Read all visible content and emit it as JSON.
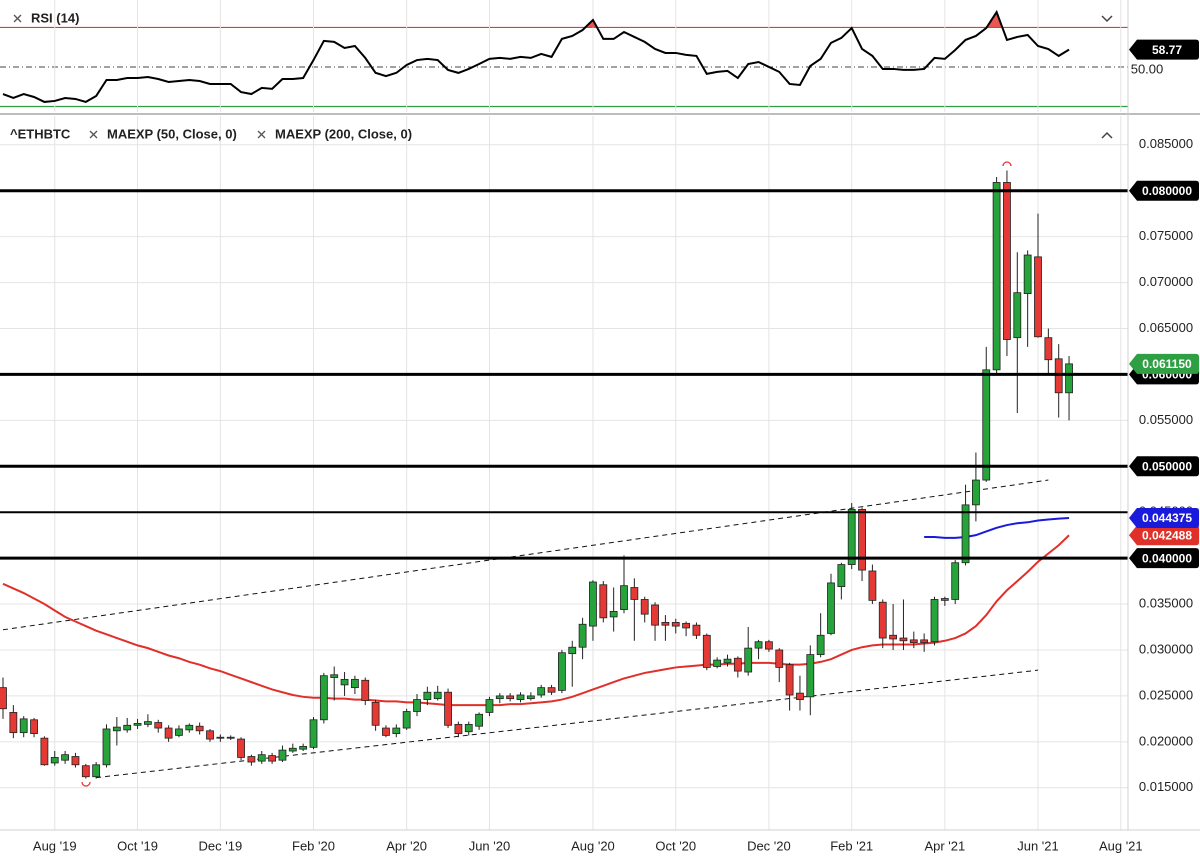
{
  "chart_data": [
    {
      "type": "line",
      "title": "RSI (14)",
      "color": "#000000",
      "ylim": [
        27.2,
        83.9
      ],
      "yticks": [
        {
          "value": 50,
          "label": "50.00"
        }
      ],
      "grid": true,
      "overbought": 70,
      "oversold": 30,
      "overbought_color": "#e53935",
      "oversold_color": "#2ea043",
      "values": [
        36.3,
        34.3,
        36.3,
        34.8,
        32.3,
        32.8,
        34.3,
        33.8,
        32.3,
        35.3,
        43.4,
        43.4,
        44.4,
        44.4,
        44.9,
        43.9,
        42.4,
        42.9,
        43.4,
        42.9,
        41.4,
        41.4,
        41.4,
        37.3,
        36.3,
        39.4,
        38.9,
        43.9,
        43.9,
        44.4,
        53.5,
        63.2,
        62.7,
        59.6,
        60.6,
        54.6,
        47.0,
        45.4,
        47.0,
        51.0,
        53.5,
        54.1,
        53.5,
        48.5,
        47.0,
        49.0,
        51.5,
        54.1,
        54.6,
        54.1,
        55.1,
        54.6,
        56.6,
        55.1,
        64.2,
        65.7,
        68.7,
        73.8,
        64.2,
        64.2,
        67.7,
        65.2,
        62.7,
        59.1,
        57.1,
        57.1,
        56.1,
        55.6,
        46.5,
        47.5,
        48.0,
        44.4,
        51.5,
        52.5,
        50.0,
        47.5,
        41.4,
        40.9,
        50.5,
        54.1,
        62.2,
        64.7,
        69.7,
        59.1,
        55.6,
        49.0,
        49.0,
        48.5,
        48.5,
        49.0,
        54.6,
        54.1,
        58.6,
        63.7,
        65.7,
        69.7,
        77.8,
        63.7,
        65.2,
        66.2,
        60.6,
        59.1,
        55.6,
        58.77,
        null,
        null,
        null,
        null,
        null
      ]
    },
    {
      "type": "candlestick",
      "title": "^ETHBTC",
      "up_color": "#26a33a",
      "down_color": "#e53935",
      "ylim": [
        0.0104,
        0.0877
      ],
      "yticks": [
        {
          "value": 0.085,
          "label": "0.085000"
        },
        {
          "value": 0.08,
          "label": "0.080000"
        },
        {
          "value": 0.075,
          "label": "0.075000"
        },
        {
          "value": 0.07,
          "label": "0.070000"
        },
        {
          "value": 0.065,
          "label": "0.065000"
        },
        {
          "value": 0.06,
          "label": "0.060000"
        },
        {
          "value": 0.055,
          "label": "0.055000"
        },
        {
          "value": 0.05,
          "label": "0.050000"
        },
        {
          "value": 0.045,
          "label": "0.045000"
        },
        {
          "value": 0.04,
          "label": "0.040000"
        },
        {
          "value": 0.035,
          "label": "0.035000"
        },
        {
          "value": 0.03,
          "label": "0.030000"
        },
        {
          "value": 0.025,
          "label": "0.025000"
        },
        {
          "value": 0.02,
          "label": "0.020000"
        },
        {
          "value": 0.015,
          "label": "0.015000"
        }
      ],
      "grid": true,
      "categories": [
        null,
        null,
        null,
        null,
        null,
        "Aug '19",
        null,
        null,
        null,
        null,
        null,
        null,
        null,
        "Oct '19",
        null,
        null,
        null,
        null,
        null,
        null,
        null,
        "Dec '19",
        null,
        null,
        null,
        null,
        null,
        null,
        null,
        null,
        "Feb '20",
        null,
        null,
        null,
        null,
        null,
        null,
        null,
        null,
        "Apr '20",
        null,
        null,
        null,
        null,
        null,
        null,
        null,
        "Jun '20",
        null,
        null,
        null,
        null,
        null,
        null,
        null,
        null,
        null,
        "Aug '20",
        null,
        null,
        null,
        null,
        null,
        null,
        null,
        "Oct '20",
        null,
        null,
        null,
        null,
        null,
        null,
        null,
        null,
        "Dec '20",
        null,
        null,
        null,
        null,
        null,
        null,
        null,
        "Feb '21",
        null,
        null,
        null,
        null,
        null,
        null,
        null,
        null,
        "Apr '21",
        null,
        null,
        null,
        null,
        null,
        null,
        null,
        null,
        "Jun '21",
        null,
        null,
        null,
        null,
        null,
        null,
        null,
        "Aug '21"
      ],
      "open": [
        0.0259,
        0.0232,
        0.021,
        0.0224,
        0.0204,
        0.0177,
        0.018,
        0.0184,
        0.0174,
        0.0162,
        0.0175,
        0.0212,
        0.0213,
        0.0218,
        0.0219,
        0.0221,
        0.0215,
        0.0207,
        0.0213,
        0.0217,
        0.0212,
        0.0205,
        0.0205,
        0.0203,
        0.0184,
        0.0179,
        0.0185,
        0.018,
        0.019,
        0.0192,
        0.0194,
        0.0224,
        0.027,
        0.0262,
        0.0259,
        0.0267,
        0.0243,
        0.0215,
        0.0209,
        0.0215,
        0.0233,
        0.0246,
        0.0247,
        0.0254,
        0.0219,
        0.0211,
        0.0217,
        0.0232,
        0.0247,
        0.025,
        0.0246,
        0.0247,
        0.0251,
        0.0259,
        0.0256,
        0.0296,
        0.0303,
        0.0326,
        0.0371,
        0.0336,
        0.0344,
        0.0368,
        0.0355,
        0.0349,
        0.033,
        0.033,
        0.0329,
        0.0327,
        0.0316,
        0.0282,
        0.0286,
        0.0291,
        0.0276,
        0.0302,
        0.0309,
        0.03,
        0.0284,
        0.0253,
        0.0249,
        0.0295,
        0.0318,
        0.0369,
        0.0393,
        0.0453,
        0.0386,
        0.0352,
        0.0316,
        0.0313,
        0.0311,
        0.0311,
        0.0309,
        0.0356,
        0.0355,
        0.0395,
        0.0458,
        0.0485,
        0.0605,
        0.0809,
        0.064,
        0.0688,
        0.0728,
        0.064,
        0.0617,
        0.058,
        null,
        null,
        null,
        null,
        null
      ],
      "high": [
        0.027,
        0.024,
        0.0228,
        0.0226,
        0.0206,
        0.019,
        0.019,
        0.0188,
        0.0176,
        0.0178,
        0.0219,
        0.0227,
        0.0226,
        0.0225,
        0.023,
        0.0224,
        0.0218,
        0.0218,
        0.022,
        0.0221,
        0.0214,
        0.0208,
        0.0207,
        0.0205,
        0.0186,
        0.019,
        0.0188,
        0.0196,
        0.0198,
        0.0198,
        0.0227,
        0.0275,
        0.0282,
        0.0276,
        0.0272,
        0.027,
        0.0246,
        0.0218,
        0.0219,
        0.0236,
        0.0252,
        0.026,
        0.0261,
        0.0258,
        0.0222,
        0.0222,
        0.0232,
        0.0249,
        0.0253,
        0.0253,
        0.0254,
        0.0254,
        0.0262,
        0.0262,
        0.03,
        0.031,
        0.0335,
        0.0376,
        0.0375,
        0.0368,
        0.0403,
        0.0378,
        0.0358,
        0.0352,
        0.0338,
        0.0334,
        0.0331,
        0.033,
        0.0318,
        0.0292,
        0.0295,
        0.0293,
        0.0325,
        0.0311,
        0.0311,
        0.0302,
        0.0286,
        0.0272,
        0.0305,
        0.034,
        0.0383,
        0.0395,
        0.046,
        0.0455,
        0.0393,
        0.0355,
        0.035,
        0.0355,
        0.032,
        0.0318,
        0.0358,
        0.0358,
        0.0398,
        0.048,
        0.0515,
        0.063,
        0.0815,
        0.0822,
        0.0733,
        0.0735,
        0.0775,
        0.065,
        0.0633,
        0.062,
        null,
        null,
        null,
        null,
        null
      ],
      "low": [
        0.0225,
        0.0204,
        0.0205,
        0.0205,
        0.0174,
        0.0174,
        0.0176,
        0.0172,
        0.016,
        0.016,
        0.0172,
        0.0196,
        0.021,
        0.0214,
        0.0216,
        0.021,
        0.02,
        0.0205,
        0.021,
        0.0208,
        0.02,
        0.02,
        0.0202,
        0.018,
        0.0174,
        0.0176,
        0.0176,
        0.0178,
        0.0188,
        0.019,
        0.0192,
        0.022,
        0.0245,
        0.025,
        0.0252,
        0.024,
        0.0212,
        0.0205,
        0.0205,
        0.0213,
        0.0228,
        0.024,
        0.0245,
        0.0215,
        0.0205,
        0.0207,
        0.0213,
        0.0228,
        0.0242,
        0.0244,
        0.0243,
        0.0245,
        0.0248,
        0.0251,
        0.0253,
        0.026,
        0.029,
        0.031,
        0.033,
        0.032,
        0.034,
        0.031,
        0.033,
        0.031,
        0.031,
        0.0318,
        0.0315,
        0.0312,
        0.0278,
        0.028,
        0.0282,
        0.027,
        0.0272,
        0.029,
        0.0298,
        0.0265,
        0.0234,
        0.0234,
        0.0229,
        0.0292,
        0.0316,
        0.0355,
        0.0388,
        0.0375,
        0.035,
        0.0302,
        0.03,
        0.03,
        0.0302,
        0.0298,
        0.0305,
        0.0348,
        0.035,
        0.0392,
        0.044,
        0.0483,
        0.06,
        0.062,
        0.0558,
        0.063,
        0.064,
        0.06,
        0.0553,
        0.055,
        null,
        null,
        null,
        null,
        null
      ],
      "close": [
        0.0236,
        0.021,
        0.0225,
        0.0209,
        0.0175,
        0.0183,
        0.0186,
        0.0175,
        0.0162,
        0.0175,
        0.0214,
        0.0216,
        0.0218,
        0.022,
        0.0222,
        0.0215,
        0.0204,
        0.0214,
        0.0218,
        0.0212,
        0.0203,
        0.0204,
        0.0204,
        0.0183,
        0.0178,
        0.0186,
        0.0179,
        0.0191,
        0.0193,
        0.0195,
        0.0224,
        0.0272,
        0.0273,
        0.0268,
        0.0268,
        0.0245,
        0.0218,
        0.0207,
        0.0215,
        0.0233,
        0.0246,
        0.0254,
        0.0254,
        0.0218,
        0.0209,
        0.0219,
        0.023,
        0.0246,
        0.025,
        0.0247,
        0.0251,
        0.025,
        0.0259,
        0.0254,
        0.0297,
        0.0303,
        0.0328,
        0.0374,
        0.0335,
        0.0342,
        0.037,
        0.0355,
        0.0339,
        0.0327,
        0.0327,
        0.0326,
        0.0324,
        0.0316,
        0.0281,
        0.0289,
        0.029,
        0.0277,
        0.0302,
        0.0309,
        0.0301,
        0.0281,
        0.0251,
        0.0246,
        0.0295,
        0.0316,
        0.0373,
        0.0393,
        0.0453,
        0.0387,
        0.0354,
        0.0313,
        0.0312,
        0.031,
        0.0308,
        0.0308,
        0.0355,
        0.0354,
        0.0395,
        0.0458,
        0.0485,
        0.0605,
        0.0809,
        0.0638,
        0.0689,
        0.073,
        0.0641,
        0.0616,
        0.058,
        0.06115,
        null,
        null,
        null,
        null,
        null
      ],
      "last_close_label": "0.061150",
      "last_close_color": "#2ea043",
      "series": [
        {
          "name": "MAEXP (50, Close, 0)",
          "color": "#e0302a",
          "values": [
            0.0372,
            0.0367,
            0.0362,
            0.0356,
            0.035,
            0.0343,
            0.0336,
            0.0331,
            0.0326,
            0.0321,
            0.0317,
            0.0313,
            0.0309,
            0.0305,
            0.0302,
            0.0298,
            0.0294,
            0.0291,
            0.0287,
            0.0284,
            0.028,
            0.0277,
            0.0273,
            0.0269,
            0.0265,
            0.0261,
            0.0257,
            0.0254,
            0.0251,
            0.0249,
            0.0248,
            0.0248,
            0.0247,
            0.0247,
            0.0246,
            0.0246,
            0.0245,
            0.0244,
            0.0244,
            0.0243,
            0.0243,
            0.0242,
            0.0241,
            0.024,
            0.024,
            0.024,
            0.024,
            0.024,
            0.024,
            0.0241,
            0.0241,
            0.0242,
            0.0243,
            0.0244,
            0.0246,
            0.0249,
            0.0253,
            0.0257,
            0.0261,
            0.0265,
            0.0269,
            0.0272,
            0.0275,
            0.0277,
            0.0279,
            0.0281,
            0.0282,
            0.0283,
            0.0284,
            0.0284,
            0.0285,
            0.0285,
            0.0286,
            0.0286,
            0.0286,
            0.0285,
            0.0284,
            0.0284,
            0.0285,
            0.0287,
            0.029,
            0.0295,
            0.03,
            0.0303,
            0.0305,
            0.0306,
            0.0306,
            0.0306,
            0.0306,
            0.0307,
            0.0308,
            0.031,
            0.0313,
            0.0318,
            0.0326,
            0.0338,
            0.0353,
            0.0365,
            0.0375,
            0.0385,
            0.0396,
            0.0405,
            0.0414,
            0.042488,
            null,
            null,
            null,
            null,
            null
          ]
        },
        {
          "name": "MAEXP (200, Close, 0)",
          "color": "#1a1adb",
          "values": [
            null,
            null,
            null,
            null,
            null,
            null,
            null,
            null,
            null,
            null,
            null,
            null,
            null,
            null,
            null,
            null,
            null,
            null,
            null,
            null,
            null,
            null,
            null,
            null,
            null,
            null,
            null,
            null,
            null,
            null,
            null,
            null,
            null,
            null,
            null,
            null,
            null,
            null,
            null,
            null,
            null,
            null,
            null,
            null,
            null,
            null,
            null,
            null,
            null,
            null,
            null,
            null,
            null,
            null,
            null,
            null,
            null,
            null,
            null,
            null,
            null,
            null,
            null,
            null,
            null,
            null,
            null,
            null,
            null,
            null,
            null,
            null,
            null,
            null,
            null,
            null,
            null,
            null,
            null,
            null,
            null,
            null,
            null,
            null,
            null,
            null,
            null,
            null,
            null,
            0.0423,
            0.0423,
            0.0422,
            0.0422,
            0.0423,
            0.0425,
            0.0429,
            0.0433,
            0.0436,
            0.0438,
            0.0439,
            0.0441,
            0.0442,
            0.0443,
            0.044375,
            null,
            null,
            null,
            null,
            null
          ]
        }
      ],
      "price_levels": [
        {
          "value": 0.08,
          "label": "0.080000"
        },
        {
          "value": 0.06,
          "label": "0.060000"
        },
        {
          "value": 0.05,
          "label": "0.050000"
        },
        0.045,
        {
          "value": 0.04,
          "label": "0.040000"
        }
      ],
      "trendlines": [
        {
          "points": [
            [
              0,
              0.0322
            ],
            [
              101,
              0.0485
            ]
          ]
        },
        {
          "points": [
            [
              9,
              0.0161
            ],
            [
              100,
              0.0278
            ]
          ]
        }
      ]
    }
  ]
}
